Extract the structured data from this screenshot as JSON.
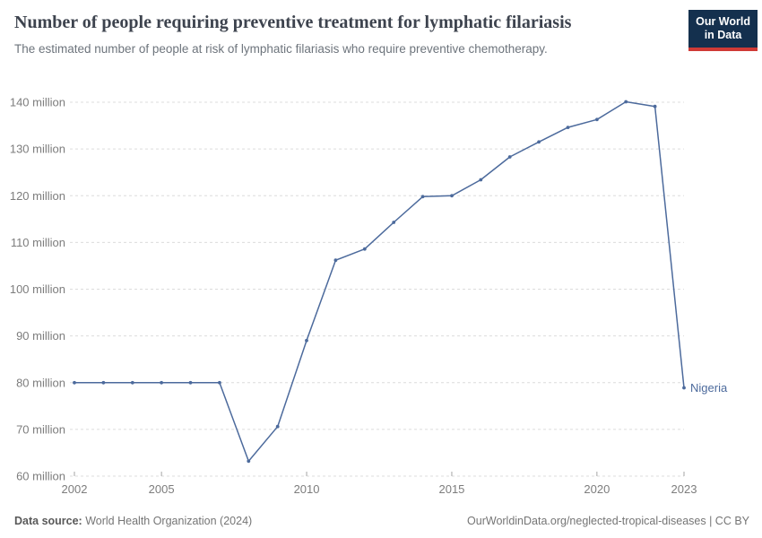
{
  "header": {
    "title": "Number of people requiring preventive treatment for lymphatic filariasis",
    "subtitle": "The estimated number of people at risk of lymphatic filariasis who require preventive chemotherapy.",
    "logo": {
      "line1": "Our World",
      "line2": "in Data",
      "bg_color": "#14304e",
      "accent_color": "#cf3a36"
    }
  },
  "chart_data": {
    "type": "line",
    "title": "Number of people requiring preventive treatment for lymphatic filariasis",
    "unit": "people (millions)",
    "x": [
      2002,
      2003,
      2004,
      2005,
      2006,
      2007,
      2008,
      2009,
      2010,
      2011,
      2012,
      2013,
      2014,
      2015,
      2016,
      2017,
      2018,
      2019,
      2020,
      2021,
      2022,
      2023
    ],
    "series": [
      {
        "name": "Nigeria",
        "color": "#4c6a9c",
        "values": [
          80,
          80,
          80,
          80,
          80,
          80,
          63.2,
          70.6,
          89,
          106.2,
          108.6,
          114.3,
          119.8,
          120,
          123.4,
          128.3,
          131.5,
          134.6,
          136.3,
          140.1,
          139.1,
          78.9
        ]
      }
    ],
    "x_ticks": [
      2002,
      2005,
      2010,
      2015,
      2020,
      2023
    ],
    "y_ticks": [
      60,
      70,
      80,
      90,
      100,
      110,
      120,
      130,
      140
    ],
    "y_tick_suffix": " million",
    "xlim": [
      2002,
      2023
    ],
    "ylim": [
      60,
      140
    ],
    "grid": "horizontal-dashed",
    "legend_position": "end-of-line",
    "end_label": "Nigeria",
    "colors": {
      "line": "#4c6a9c",
      "grid": "#dcdcdc",
      "axis_tick": "#a6a6a6",
      "tick_label": "#7d7d7d"
    }
  },
  "footer": {
    "source_label": "Data source:",
    "source_value": "World Health Organization (2024)",
    "attribution": "OurWorldinData.org/neglected-tropical-diseases | CC BY"
  }
}
